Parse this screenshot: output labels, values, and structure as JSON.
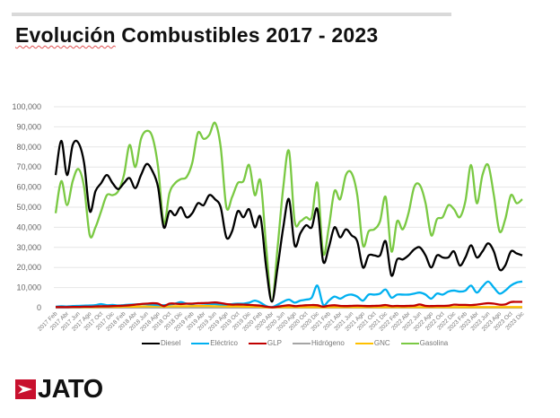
{
  "header": {
    "title_part1": "Evolución",
    "title_part2": " Combustibles 2017 - 2023"
  },
  "logo": {
    "text": "JATO",
    "color": "#c8102e"
  },
  "chart_data": {
    "type": "line",
    "title": "Evolución Combustibles 2017 - 2023",
    "ylim": [
      0,
      100000
    ],
    "yticks": [
      "0",
      "10,000",
      "20,000",
      "30,000",
      "40,000",
      "50,000",
      "60,000",
      "70,000",
      "80,000",
      "90,000",
      "100,000"
    ],
    "grid": true,
    "legend_placement": "bottom",
    "x_tick_labels": [
      "2017 Feb",
      "2017 Abr",
      "2017 Jun",
      "2017 Ago",
      "2017 Oct",
      "2017 Dic",
      "2018 Feb",
      "2018 Abr",
      "2018 Jun",
      "2018 Ago",
      "2018 Oct",
      "2018 Dic",
      "2019 Feb",
      "2019 Abr",
      "2019 Jun",
      "2019 Ago",
      "2019 Oct",
      "2019 Dic",
      "2020 Feb",
      "2020 Abr",
      "2020 Jun",
      "2020 Ago",
      "2020 Oct",
      "2020 Dic",
      "2021 Feb",
      "2021 Abr",
      "2021 Jun",
      "2021 Ago",
      "2021 Oct",
      "2021 Dic",
      "2022 Feb",
      "2022 Abr",
      "2022 Jun",
      "2022 Ago",
      "2022 Oct",
      "2022 Dic",
      "2023 Feb",
      "2023 Abr",
      "2023 Jun",
      "2023 Ago",
      "2023 Oct",
      "2023 Dic"
    ],
    "x_range": [
      "2017 Feb",
      "2023 Dic"
    ],
    "frequency": "monthly",
    "series": [
      {
        "name": "Diesel",
        "color": "#000000",
        "values": [
          66000,
          83000,
          66000,
          81000,
          82000,
          72000,
          48000,
          58000,
          62000,
          66000,
          62000,
          59000,
          62000,
          64500,
          59500,
          66000,
          71500,
          68000,
          60000,
          40000,
          48000,
          46000,
          50000,
          45000,
          47000,
          52000,
          51000,
          56000,
          54000,
          50000,
          35000,
          38000,
          48000,
          45000,
          49000,
          40000,
          45000,
          20000,
          3000,
          20000,
          40000,
          54000,
          31000,
          37000,
          41000,
          40000,
          49000,
          23000,
          30000,
          40000,
          35000,
          39000,
          36000,
          33000,
          20000,
          26000,
          26000,
          26000,
          33000,
          16000,
          24000,
          24000,
          26000,
          29000,
          30000,
          26000,
          20000,
          26000,
          25000,
          25000,
          28000,
          21000,
          25000,
          31000,
          25000,
          28000,
          32000,
          28000,
          19000,
          21000,
          28000,
          27000,
          26000
        ]
      },
      {
        "name": "Eléctrico",
        "color": "#00b0f0",
        "values": [
          500,
          700,
          600,
          800,
          900,
          1000,
          1100,
          1300,
          1800,
          1200,
          1400,
          1100,
          1300,
          1500,
          1600,
          1800,
          1700,
          1500,
          1300,
          1200,
          1600,
          2000,
          2800,
          2000,
          1800,
          2200,
          2000,
          1900,
          1800,
          1600,
          1500,
          1800,
          2000,
          2000,
          2500,
          3500,
          2500,
          800,
          300,
          1500,
          3000,
          4000,
          2500,
          3500,
          4000,
          5000,
          11000,
          1500,
          3500,
          5500,
          4500,
          6000,
          6500,
          5500,
          3500,
          6500,
          6500,
          7000,
          9000,
          5000,
          6500,
          6500,
          6500,
          7000,
          7500,
          6500,
          4500,
          7000,
          6500,
          8000,
          8500,
          8000,
          8500,
          11000,
          7500,
          10500,
          13000,
          10000,
          7000,
          8500,
          11000,
          12500,
          13000
        ]
      },
      {
        "name": "GLP",
        "color": "#c00000",
        "values": [
          300,
          300,
          300,
          400,
          400,
          500,
          500,
          600,
          700,
          700,
          800,
          900,
          1000,
          1200,
          1500,
          1800,
          2000,
          2200,
          2000,
          800,
          2000,
          2000,
          1800,
          2000,
          2000,
          2200,
          2300,
          2400,
          2600,
          2300,
          1800,
          1500,
          1600,
          1500,
          1400,
          1200,
          1000,
          500,
          200,
          500,
          900,
          1200,
          800,
          1000,
          1200,
          1300,
          1200,
          500,
          1000,
          1200,
          900,
          800,
          900,
          1000,
          900,
          800,
          900,
          1000,
          1300,
          800,
          900,
          800,
          900,
          1000,
          1600,
          900,
          800,
          900,
          900,
          1000,
          1500,
          1400,
          1400,
          1300,
          1500,
          1900,
          2200,
          2000,
          1500,
          1600,
          2800,
          2900,
          2900
        ]
      },
      {
        "name": "Hidrógeno",
        "color": "#a5a5a5",
        "values": [
          0,
          0,
          0,
          0,
          0,
          0,
          0,
          0,
          0,
          0,
          0,
          0,
          0,
          0,
          0,
          0,
          0,
          0,
          0,
          0,
          0,
          0,
          0,
          0,
          0,
          0,
          0,
          0,
          0,
          0,
          0,
          0,
          0,
          0,
          0,
          0,
          0,
          0,
          0,
          0,
          0,
          0,
          0,
          0,
          0,
          0,
          0,
          0,
          0,
          0,
          0,
          0,
          0,
          0,
          0,
          0,
          0,
          0,
          0,
          0,
          0,
          0,
          0,
          0,
          0,
          0,
          0,
          0,
          0,
          0,
          0,
          0,
          0,
          0,
          0,
          0,
          0,
          0,
          0,
          0,
          0,
          0,
          0
        ]
      },
      {
        "name": "GNC",
        "color": "#ffc000",
        "values": [
          300,
          300,
          300,
          300,
          300,
          300,
          300,
          300,
          400,
          400,
          400,
          400,
          500,
          500,
          500,
          600,
          600,
          600,
          600,
          500,
          600,
          700,
          700,
          700,
          800,
          800,
          800,
          800,
          700,
          700,
          600,
          600,
          600,
          500,
          500,
          500,
          400,
          200,
          100,
          200,
          300,
          300,
          300,
          300,
          300,
          300,
          300,
          200,
          300,
          300,
          300,
          300,
          300,
          300,
          300,
          300,
          300,
          300,
          300,
          300,
          300,
          300,
          300,
          300,
          300,
          300,
          300,
          300,
          300,
          300,
          300,
          300,
          300,
          300,
          300,
          300,
          300,
          300,
          300,
          300,
          300,
          300,
          300
        ]
      },
      {
        "name": "Gasolina",
        "color": "#7ac943",
        "values": [
          47000,
          63000,
          51000,
          63000,
          69000,
          60000,
          36000,
          40000,
          48000,
          56000,
          56000,
          58000,
          66000,
          81000,
          70000,
          84000,
          88000,
          85000,
          70000,
          42000,
          57000,
          62000,
          64000,
          65000,
          72000,
          87000,
          84000,
          86000,
          92000,
          80000,
          50000,
          55000,
          62000,
          63000,
          71000,
          56000,
          63000,
          30000,
          3000,
          30000,
          60000,
          78000,
          43000,
          43000,
          45000,
          45000,
          62000,
          27000,
          40000,
          58000,
          54000,
          66000,
          67000,
          56000,
          31000,
          38000,
          39000,
          43000,
          55000,
          28000,
          43000,
          39000,
          47000,
          60000,
          61000,
          52000,
          36000,
          44000,
          45000,
          51000,
          49000,
          45000,
          53000,
          71000,
          52000,
          66000,
          71000,
          56000,
          38000,
          44000,
          56000,
          52000,
          54000
        ]
      }
    ]
  }
}
